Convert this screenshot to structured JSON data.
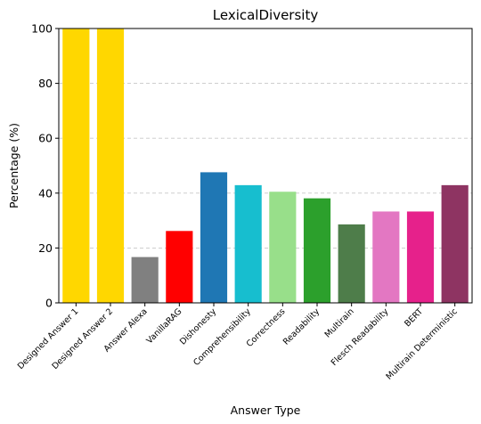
{
  "chart_data": {
    "type": "bar",
    "title": "LexicalDiversity",
    "xlabel": "Answer Type",
    "ylabel": "Percentage (%)",
    "ylim": [
      0,
      100
    ],
    "yticks": [
      0,
      20,
      40,
      60,
      80,
      100
    ],
    "grid": "y-dashed",
    "categories": [
      "Designed Answer 1",
      "Designed Answer 2",
      "Answer Alexa",
      "VanillaRAG",
      "Dishonesty",
      "Comprehensibility",
      "Correctness",
      "Readability",
      "Multirain",
      "Flesch Readability",
      "BERT",
      "Multirain Deterministic"
    ],
    "values": [
      100,
      100,
      16.7,
      26.2,
      47.6,
      42.9,
      40.5,
      38.1,
      28.6,
      33.3,
      33.3,
      42.9
    ],
    "colors": [
      "#ffd700",
      "#ffd700",
      "#808080",
      "#ff0000",
      "#1f77b4",
      "#17becf",
      "#98df8a",
      "#2ca02c",
      "#4e7d4a",
      "#e377c2",
      "#e6218b",
      "#8e3462"
    ]
  }
}
